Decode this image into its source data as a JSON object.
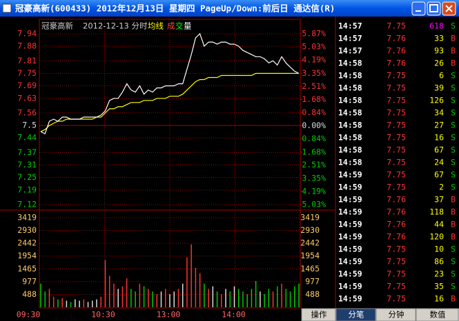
{
  "window": {
    "title": "冠豪高新(600433) 2012年12月13日 星期四 PageUp/Down:前后日 通达信(R)"
  },
  "chart": {
    "stock": "冠豪高新",
    "date": "2012-12-13 分时",
    "legend": [
      "均线",
      "成",
      "交",
      "量"
    ],
    "price_ticks": [
      7.94,
      7.88,
      7.81,
      7.75,
      7.69,
      7.63,
      7.56,
      7.5,
      7.44,
      7.37,
      7.31,
      7.25,
      7.19,
      7.12
    ],
    "price_lim": [
      7.12,
      7.94
    ],
    "base_price": 7.5,
    "pct_ticks": [
      {
        "value": 5.87,
        "label": "5.87%"
      },
      {
        "value": 5.03,
        "label": "5.03%"
      },
      {
        "value": 4.19,
        "label": "4.19%"
      },
      {
        "value": 3.35,
        "label": "3.35%"
      },
      {
        "value": 2.51,
        "label": "2.51%"
      },
      {
        "value": 1.68,
        "label": "1.68%"
      },
      {
        "value": 0.84,
        "label": "0.84%"
      },
      {
        "value": 0,
        "label": "0.00%"
      },
      {
        "value": -0.84,
        "label": "0.84%"
      },
      {
        "value": -1.68,
        "label": "1.68%"
      },
      {
        "value": -2.51,
        "label": "2.51%"
      },
      {
        "value": -3.35,
        "label": "3.35%"
      },
      {
        "value": -4.19,
        "label": "4.19%"
      },
      {
        "value": -5.03,
        "label": "5.03%"
      }
    ],
    "pct_lim": [
      -5.03,
      5.87
    ],
    "volume_ticks": [
      3419,
      2930,
      2442,
      1954,
      1465,
      977,
      488
    ],
    "volume_lim": [
      0,
      3419
    ],
    "time_labels": [
      "09:30",
      "10:30",
      "13:00",
      "14:00"
    ],
    "price": [
      7.47,
      7.46,
      7.52,
      7.53,
      7.52,
      7.54,
      7.54,
      7.53,
      7.53,
      7.53,
      7.54,
      7.54,
      7.54,
      7.54,
      7.55,
      7.57,
      7.62,
      7.63,
      7.63,
      7.66,
      7.7,
      7.67,
      7.66,
      7.69,
      7.65,
      7.67,
      7.66,
      7.68,
      7.68,
      7.69,
      7.69,
      7.69,
      7.7,
      7.7,
      7.77,
      7.84,
      7.92,
      7.94,
      7.88,
      7.9,
      7.9,
      7.89,
      7.9,
      7.9,
      7.89,
      7.89,
      7.88,
      7.86,
      7.85,
      7.84,
      7.83,
      7.83,
      7.82,
      7.8,
      7.81,
      7.79,
      7.83,
      7.8,
      7.78,
      7.76,
      7.75
    ],
    "average": [
      7.47,
      7.48,
      7.5,
      7.51,
      7.52,
      7.52,
      7.53,
      7.53,
      7.53,
      7.53,
      7.53,
      7.53,
      7.53,
      7.54,
      7.54,
      7.56,
      7.58,
      7.58,
      7.59,
      7.59,
      7.6,
      7.61,
      7.61,
      7.61,
      7.62,
      7.62,
      7.62,
      7.63,
      7.63,
      7.63,
      7.64,
      7.64,
      7.64,
      7.65,
      7.67,
      7.69,
      7.71,
      7.72,
      7.72,
      7.73,
      7.73,
      7.73,
      7.74,
      7.74,
      7.74,
      7.74,
      7.74,
      7.74,
      7.74,
      7.74,
      7.75,
      7.75,
      7.75,
      7.75,
      7.75,
      7.75,
      7.75,
      7.75,
      7.75,
      7.75,
      7.75
    ],
    "volume": [
      900,
      600,
      700,
      400,
      300,
      350,
      250,
      200,
      300,
      250,
      300,
      200,
      250,
      300,
      400,
      1800,
      1200,
      900,
      700,
      800,
      1100,
      700,
      600,
      900,
      800,
      700,
      600,
      500,
      600,
      700,
      500,
      600,
      700,
      900,
      1900,
      2400,
      1500,
      1300,
      900,
      700,
      800,
      600,
      500,
      700,
      600,
      800,
      700,
      600,
      500,
      700,
      1000,
      600,
      500,
      700,
      600,
      800,
      900,
      700,
      600,
      800,
      900
    ]
  },
  "trades": [
    [
      "14:57",
      "7.75",
      "618",
      "S"
    ],
    [
      "14:57",
      "7.76",
      "33",
      "B"
    ],
    [
      "14:57",
      "7.76",
      "93",
      "B"
    ],
    [
      "14:58",
      "7.76",
      "26",
      "B"
    ],
    [
      "14:58",
      "7.75",
      "6",
      "S"
    ],
    [
      "14:58",
      "7.75",
      "39",
      "S"
    ],
    [
      "14:58",
      "7.75",
      "126",
      "S"
    ],
    [
      "14:58",
      "7.75",
      "34",
      "S"
    ],
    [
      "14:58",
      "7.75",
      "27",
      "S"
    ],
    [
      "14:58",
      "7.75",
      "16",
      "S"
    ],
    [
      "14:58",
      "7.75",
      "67",
      "S"
    ],
    [
      "14:58",
      "7.75",
      "24",
      "S"
    ],
    [
      "14:59",
      "7.75",
      "67",
      "S"
    ],
    [
      "14:59",
      "7.75",
      "2",
      "S"
    ],
    [
      "14:59",
      "7.76",
      "37",
      "B"
    ],
    [
      "14:59",
      "7.76",
      "118",
      "B"
    ],
    [
      "14:59",
      "7.76",
      "44",
      "B"
    ],
    [
      "14:59",
      "7.76",
      "120",
      "B"
    ],
    [
      "14:59",
      "7.75",
      "10",
      "S"
    ],
    [
      "14:59",
      "7.75",
      "86",
      "S"
    ],
    [
      "14:59",
      "7.75",
      "23",
      "S"
    ],
    [
      "14:59",
      "7.75",
      "35",
      "S"
    ],
    [
      "14:59",
      "7.75",
      "16",
      "B"
    ]
  ],
  "tabs": [
    "操作",
    "分笔",
    "分钟",
    "数值"
  ]
}
